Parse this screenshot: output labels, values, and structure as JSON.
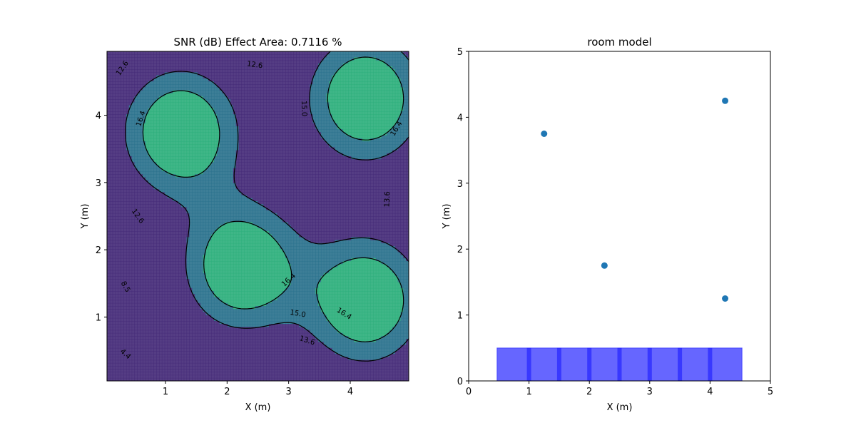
{
  "chart_data": [
    {
      "type": "contour",
      "title": "SNR (dB) Effect Area: 0.7116 %",
      "xlabel": "X (m)",
      "ylabel": "Y (m)",
      "xlim": [
        0.05,
        4.95
      ],
      "ylim": [
        0.05,
        4.95
      ],
      "xticks": [
        1,
        2,
        3,
        4
      ],
      "yticks": [
        1,
        2,
        3,
        4
      ],
      "colormap": "viridis",
      "levels": [
        0.3,
        4.4,
        8.5,
        12.6,
        13.6,
        15.0,
        16.4
      ],
      "level_labels": [
        {
          "text": "12.6",
          "x": 0.3,
          "y": 4.7,
          "rot": -55
        },
        {
          "text": "12.6",
          "x": 2.45,
          "y": 4.75,
          "rot": 8
        },
        {
          "text": "16.4",
          "x": 0.6,
          "y": 3.95,
          "rot": -72
        },
        {
          "text": "15.0",
          "x": 3.25,
          "y": 4.1,
          "rot": 88
        },
        {
          "text": "16.4",
          "x": 4.75,
          "y": 3.8,
          "rot": -58
        },
        {
          "text": "13.6",
          "x": 4.6,
          "y": 2.75,
          "rot": -88
        },
        {
          "text": "12.6",
          "x": 0.55,
          "y": 2.5,
          "rot": 55
        },
        {
          "text": "8.5",
          "x": 0.35,
          "y": 1.45,
          "rot": 60
        },
        {
          "text": "16.4",
          "x": 3.0,
          "y": 1.55,
          "rot": -42
        },
        {
          "text": "15.0",
          "x": 3.15,
          "y": 1.05,
          "rot": 10
        },
        {
          "text": "16.4",
          "x": 3.9,
          "y": 1.05,
          "rot": 32
        },
        {
          "text": "13.6",
          "x": 3.3,
          "y": 0.65,
          "rot": 18
        },
        {
          "text": "4.4",
          "x": 0.35,
          "y": 0.45,
          "rot": 42
        }
      ],
      "sources": [
        {
          "x": 1.25,
          "y": 3.75
        },
        {
          "x": 2.25,
          "y": 1.75
        },
        {
          "x": 4.25,
          "y": 4.25
        },
        {
          "x": 4.25,
          "y": 1.25
        }
      ]
    },
    {
      "type": "scatter",
      "title": "room model",
      "xlabel": "X (m)",
      "ylabel": "Y (m)",
      "xlim": [
        0,
        5
      ],
      "ylim": [
        0,
        5
      ],
      "xticks": [
        0,
        1,
        2,
        3,
        4,
        5
      ],
      "yticks": [
        0,
        1,
        2,
        3,
        4,
        5
      ],
      "points": [
        {
          "x": 1.25,
          "y": 3.75
        },
        {
          "x": 2.25,
          "y": 1.75
        },
        {
          "x": 4.25,
          "y": 4.25
        },
        {
          "x": 4.25,
          "y": 1.25
        }
      ],
      "point_color": "#1f77b4",
      "bar": {
        "x0": 0.47,
        "x1": 4.53,
        "y0": 0,
        "y1": 0.5,
        "color": "#0000ff",
        "alpha": 0.6
      },
      "bar_dividers": [
        1.0,
        1.5,
        2.0,
        2.5,
        3.0,
        3.5,
        4.0
      ]
    }
  ]
}
